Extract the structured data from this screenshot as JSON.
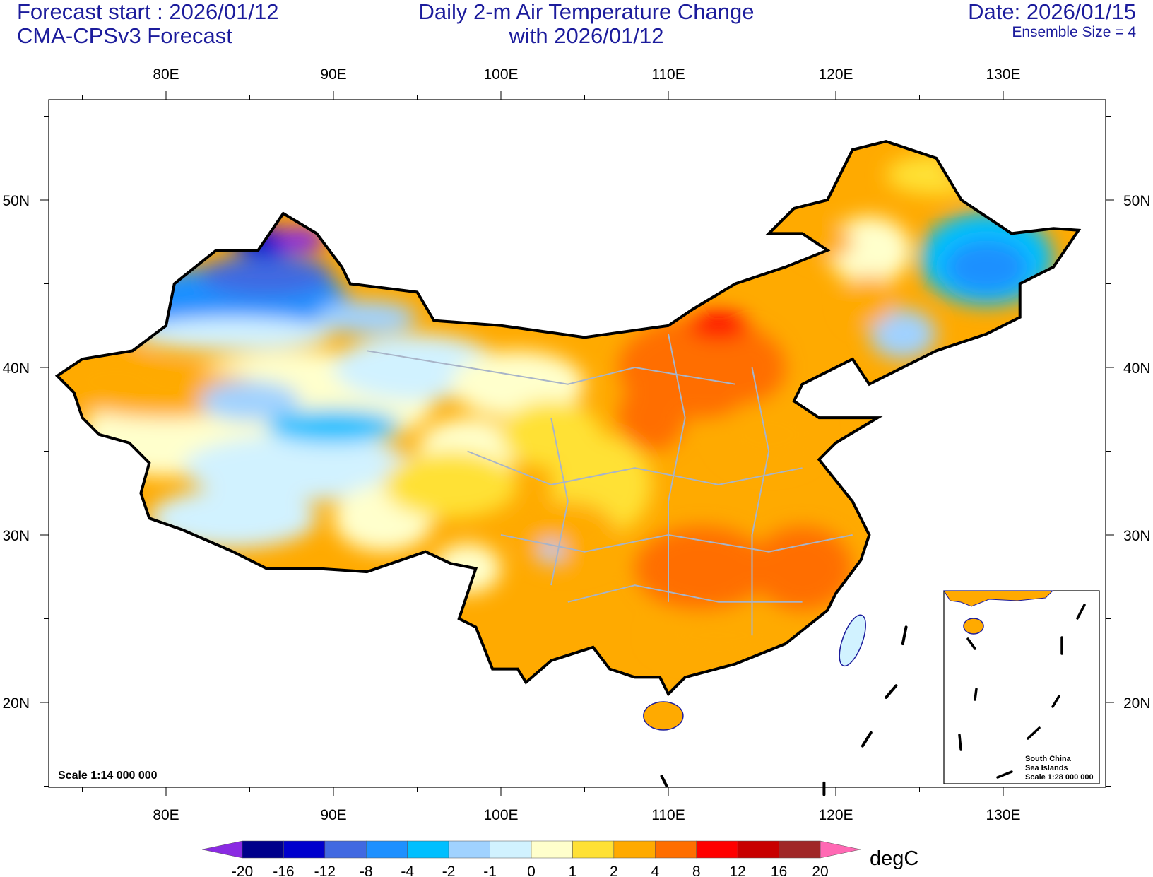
{
  "header": {
    "left_line1": "Forecast start : 2026/01/12",
    "left_line2": "CMA-CPSv3 Forecast",
    "center_line1": "Daily 2-m Air Temperature Change",
    "center_line2": "with 2026/01/12",
    "right_line1": "Date: 2026/01/15",
    "right_line2": "Ensemble Size = 4"
  },
  "axes": {
    "lon_labels": [
      "80E",
      "90E",
      "100E",
      "110E",
      "120E",
      "130E"
    ],
    "lon_values": [
      80,
      90,
      100,
      110,
      120,
      130
    ],
    "lat_labels": [
      "50N",
      "40N",
      "30N",
      "20N"
    ],
    "lat_values": [
      50,
      40,
      30,
      20
    ]
  },
  "map": {
    "scale_label": "Scale 1:14 000 000",
    "inset": {
      "line1": "South China",
      "line2": "Sea Islands",
      "line3": "Scale 1:28 000 000"
    }
  },
  "colorbar": {
    "unit": "degC",
    "labels": [
      "-20",
      "-16",
      "-12",
      "-8",
      "-4",
      "-2",
      "-1",
      "0",
      "1",
      "2",
      "4",
      "8",
      "12",
      "16",
      "20"
    ],
    "colors": [
      "#00008B",
      "#0000CD",
      "#4169E1",
      "#1E90FF",
      "#00BFFF",
      "#A0D2FF",
      "#D1F2FF",
      "#FFFFCC",
      "#FFE135",
      "#FFAA00",
      "#FF6E00",
      "#FF0000",
      "#C80000",
      "#A02828"
    ],
    "under_color": "#8A2BE2",
    "over_color": "#FF69B4"
  }
}
